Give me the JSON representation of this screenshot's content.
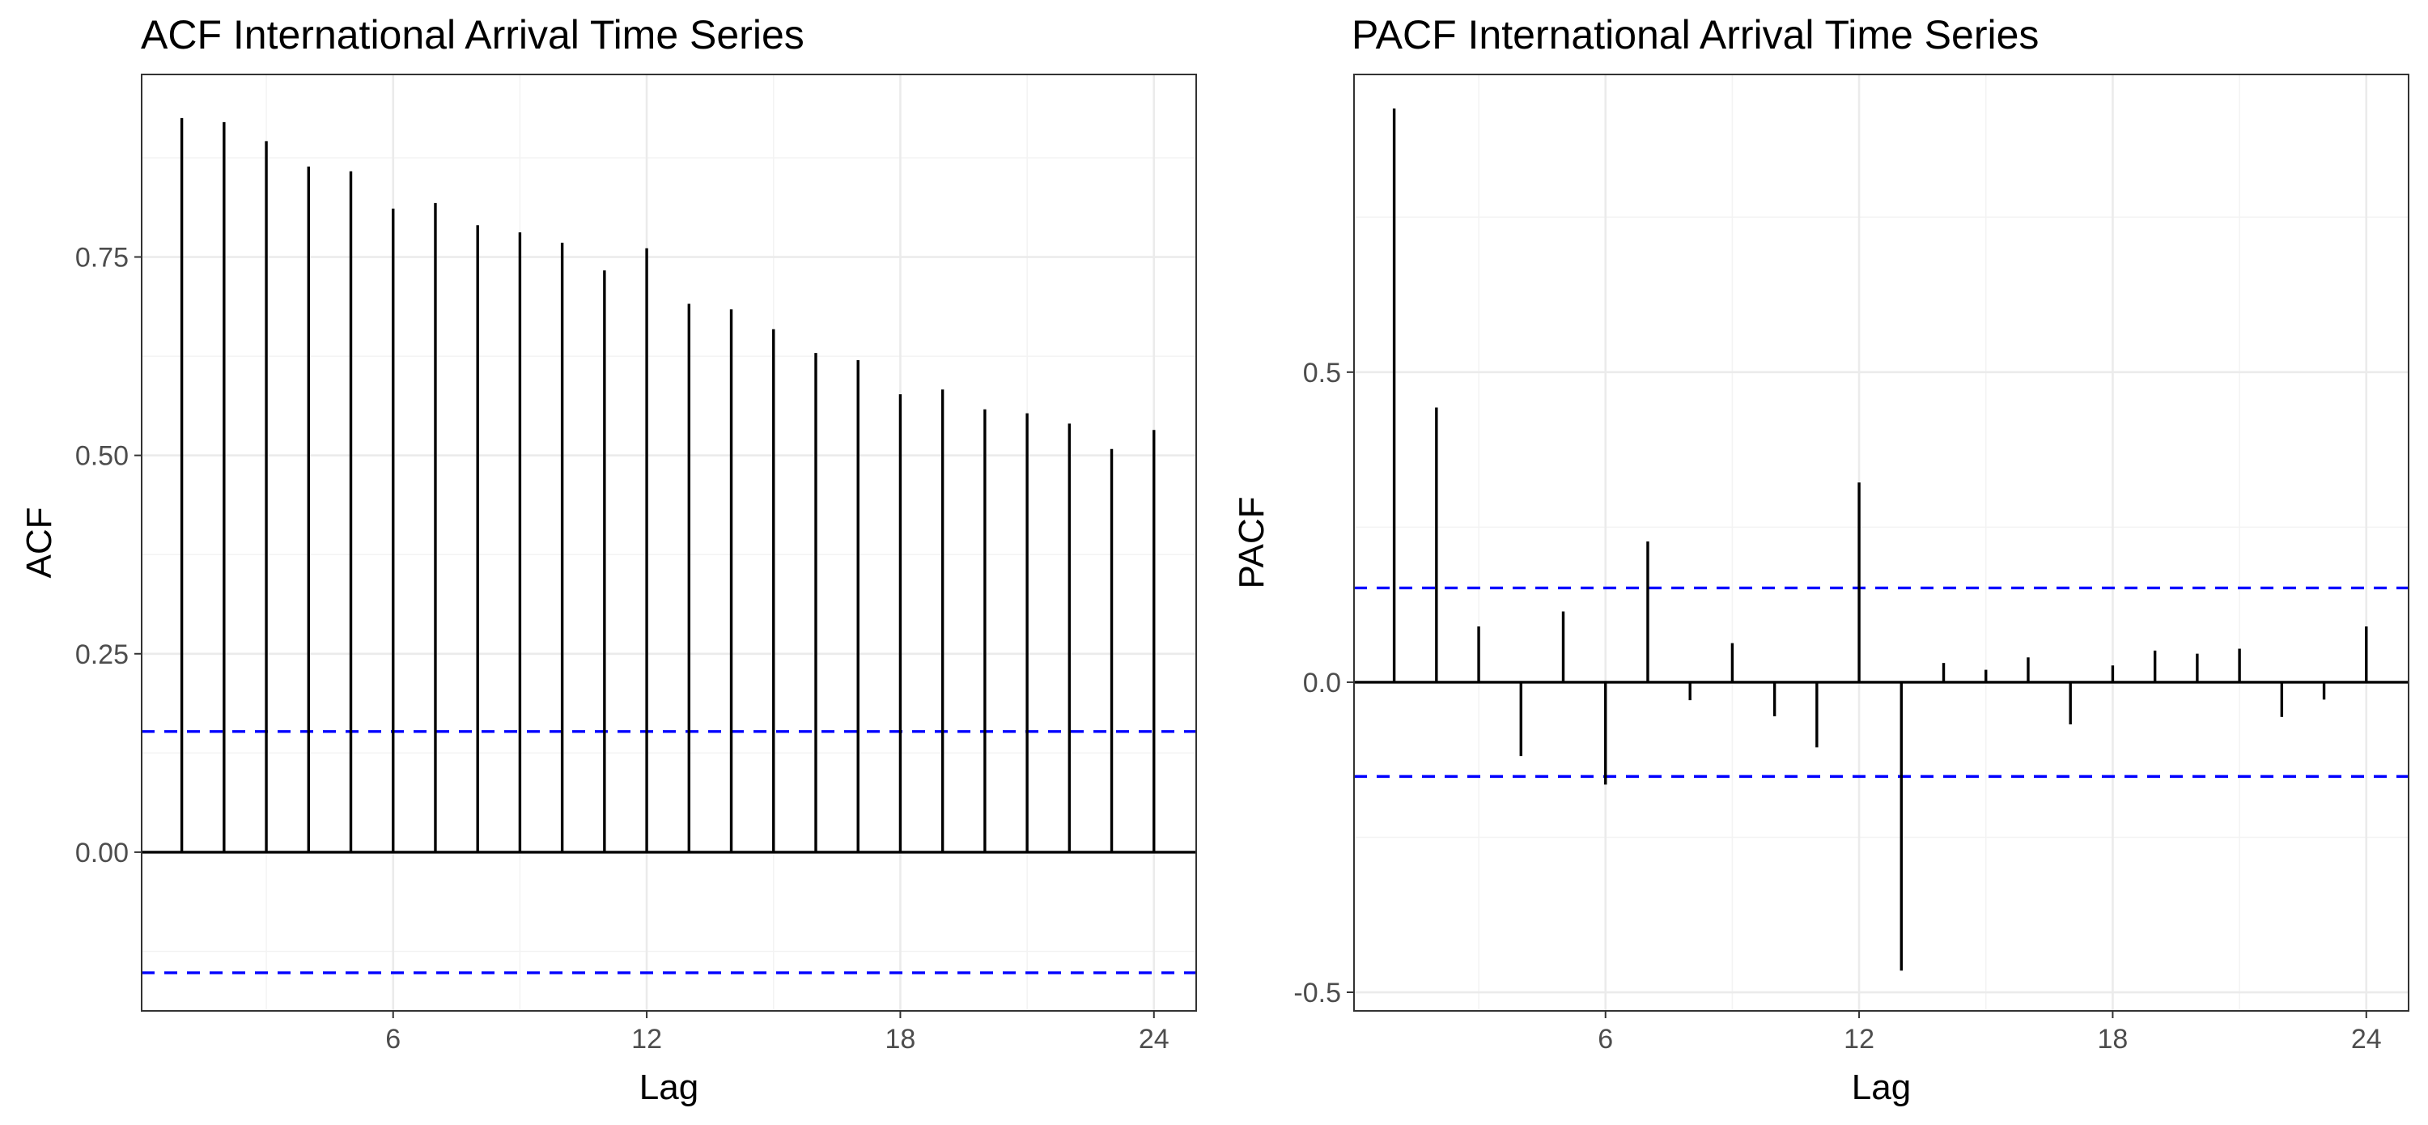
{
  "colors": {
    "ci_line": "#0000ff",
    "spike": "#000000"
  },
  "chart_data": [
    {
      "type": "bar",
      "title": "ACF International Arrival Time Series",
      "xlabel": "Lag",
      "ylabel": "ACF",
      "x": [
        1,
        2,
        3,
        4,
        5,
        6,
        7,
        8,
        9,
        10,
        11,
        12,
        13,
        14,
        15,
        16,
        17,
        18,
        19,
        20,
        21,
        22,
        23,
        24
      ],
      "values": [
        0.925,
        0.92,
        0.896,
        0.864,
        0.858,
        0.811,
        0.818,
        0.79,
        0.781,
        0.768,
        0.733,
        0.761,
        0.691,
        0.684,
        0.659,
        0.629,
        0.62,
        0.577,
        0.583,
        0.558,
        0.553,
        0.54,
        0.508,
        0.532
      ],
      "xticks": [
        6,
        12,
        18,
        24
      ],
      "xtick_labels": [
        "6",
        "12",
        "18",
        "24"
      ],
      "yticks": [
        0,
        0.25,
        0.5,
        0.75
      ],
      "ytick_labels": [
        "0.00",
        "0.25",
        "0.50",
        "0.75"
      ],
      "xlim": [
        0.05,
        25.0
      ],
      "ylim": [
        -0.2,
        0.98
      ],
      "ci": [
        0.152,
        -0.152
      ],
      "grid": true
    },
    {
      "type": "bar",
      "title": "PACF International Arrival Time Series",
      "xlabel": "Lag",
      "ylabel": "PACF",
      "x": [
        1,
        2,
        3,
        4,
        5,
        6,
        7,
        8,
        9,
        10,
        11,
        12,
        13,
        14,
        15,
        16,
        17,
        18,
        19,
        20,
        21,
        22,
        23,
        24
      ],
      "values": [
        0.925,
        0.443,
        0.09,
        -0.119,
        0.114,
        -0.165,
        0.227,
        -0.029,
        0.063,
        -0.055,
        -0.105,
        0.322,
        -0.465,
        0.031,
        0.02,
        0.04,
        -0.068,
        0.027,
        0.051,
        0.046,
        0.054,
        -0.056,
        -0.028,
        0.09
      ],
      "xticks": [
        6,
        12,
        18,
        24
      ],
      "xtick_labels": [
        "6",
        "12",
        "18",
        "24"
      ],
      "yticks": [
        -0.5,
        0,
        0.5
      ],
      "ytick_labels": [
        "-0.5",
        "0.0",
        "0.5"
      ],
      "xlim": [
        0.05,
        25.0
      ],
      "ylim": [
        -0.53,
        0.98
      ],
      "ci": [
        0.152,
        -0.152
      ],
      "grid": true
    }
  ]
}
